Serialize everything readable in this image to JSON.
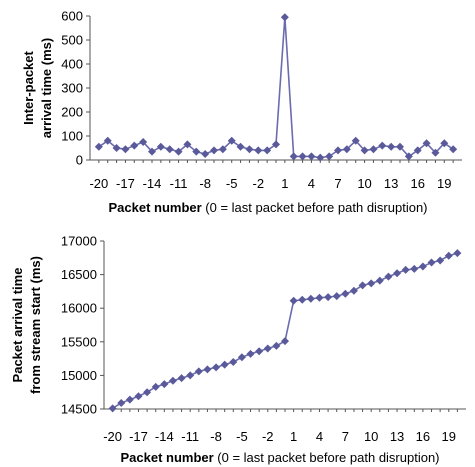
{
  "chart_data": [
    {
      "type": "line",
      "title": "",
      "xlabel_bold": "Packet number",
      "xlabel_rest": " (0 = last packet before path disruption)",
      "ylabel_lines": [
        "Inter-packet",
        "arrival time (ms)"
      ],
      "ylim": [
        0,
        600
      ],
      "yticks": [
        0,
        100,
        200,
        300,
        400,
        500,
        600
      ],
      "xlim": [
        -21,
        21
      ],
      "xticks": [
        -20,
        -17,
        -14,
        -11,
        -8,
        -5,
        -2,
        1,
        4,
        7,
        10,
        13,
        16,
        19
      ],
      "grid": false,
      "legend": "none",
      "marker": "diamond",
      "series": [
        {
          "x": [
            -20,
            -19,
            -18,
            -17,
            -16,
            -15,
            -14,
            -13,
            -12,
            -11,
            -10,
            -9,
            -8,
            -7,
            -6,
            -5,
            -4,
            -3,
            -2,
            -1,
            0,
            1,
            2,
            3,
            4,
            5,
            6,
            7,
            8,
            9,
            10,
            11,
            12,
            13,
            14,
            15,
            16,
            17,
            18,
            19,
            20
          ],
          "values": [
            55,
            80,
            50,
            45,
            60,
            75,
            35,
            55,
            45,
            35,
            65,
            35,
            25,
            40,
            45,
            80,
            55,
            45,
            40,
            40,
            65,
            595,
            15,
            15,
            15,
            10,
            15,
            40,
            45,
            80,
            40,
            45,
            60,
            55,
            55,
            15,
            40,
            70,
            30,
            70,
            45
          ]
        }
      ],
      "colors": {
        "line": "#6b6bb0",
        "marker": "#5a5a9a"
      }
    },
    {
      "type": "line",
      "title": "",
      "xlabel_bold": "Packet number",
      "xlabel_rest": " (0 = last packet before path disruption)",
      "ylabel_lines": [
        "Packet arrival time",
        "from stream start (ms)"
      ],
      "ylim": [
        14500,
        17000
      ],
      "yticks": [
        14500,
        15000,
        15500,
        16000,
        16500,
        17000
      ],
      "xlim": [
        -21,
        21
      ],
      "xticks": [
        -20,
        -17,
        -14,
        -11,
        -8,
        -5,
        -2,
        1,
        4,
        7,
        10,
        13,
        16,
        19
      ],
      "grid": false,
      "legend": "none",
      "marker": "diamond",
      "series": [
        {
          "x": [
            -20,
            -19,
            -18,
            -17,
            -16,
            -15,
            -14,
            -13,
            -12,
            -11,
            -10,
            -9,
            -8,
            -7,
            -6,
            -5,
            -4,
            -3,
            -2,
            -1,
            0,
            1,
            2,
            3,
            4,
            5,
            6,
            7,
            8,
            9,
            10,
            11,
            12,
            13,
            14,
            15,
            16,
            17,
            18,
            19,
            20
          ],
          "values": [
            14510,
            14590,
            14640,
            14690,
            14750,
            14830,
            14870,
            14920,
            14960,
            15000,
            15060,
            15090,
            15120,
            15160,
            15200,
            15270,
            15320,
            15360,
            15400,
            15440,
            15510,
            16110,
            16125,
            16140,
            16155,
            16165,
            16180,
            16215,
            16260,
            16340,
            16370,
            16410,
            16470,
            16520,
            16570,
            16585,
            16620,
            16680,
            16710,
            16780,
            16820
          ]
        }
      ],
      "colors": {
        "line": "#6b6bb0",
        "marker": "#5a5a9a"
      }
    }
  ]
}
